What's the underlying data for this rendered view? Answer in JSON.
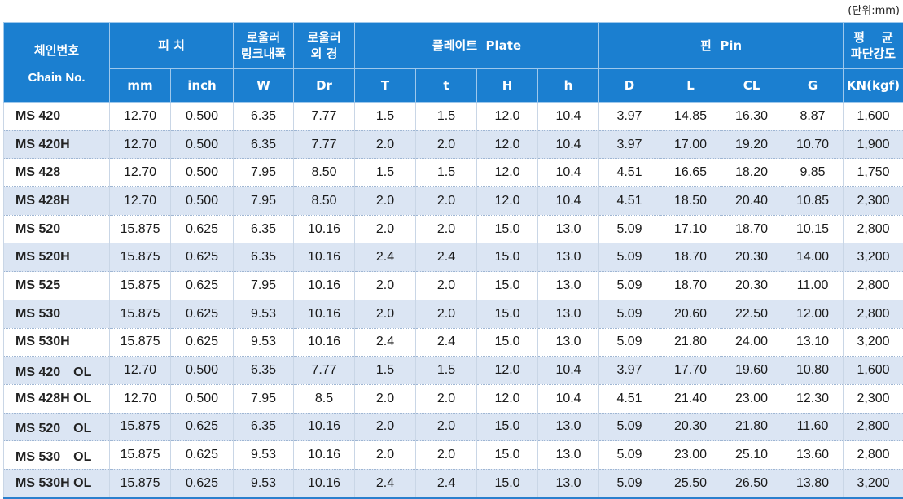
{
  "unit_note": "(단위:mm)",
  "header": {
    "chain_no_ko": "체인번호",
    "chain_no_en": "Chain No.",
    "pitch": "피 치",
    "pitch_mm": "mm",
    "pitch_inch": "inch",
    "roller_width_l1": "로울러",
    "roller_width_l2": "링크내폭",
    "roller_width_sym": "W",
    "roller_dia_l1": "로울러",
    "roller_dia_l2": "외 경",
    "roller_dia_sym": "Dr",
    "plate": "플레이트  Plate",
    "plate_cols": [
      "T",
      "t",
      "H",
      "h"
    ],
    "pin": "핀  Pin",
    "pin_cols": [
      "D",
      "L",
      "CL",
      "G"
    ],
    "strength_l1": "평    균",
    "strength_l2": "파단강도",
    "strength_unit": "KN(kgf)"
  },
  "rows": [
    [
      "MS 420",
      "12.70",
      "0.500",
      "6.35",
      "7.77",
      "1.5",
      "1.5",
      "12.0",
      "10.4",
      "3.97",
      "14.85",
      "16.30",
      "8.87",
      "1,600"
    ],
    [
      "MS 420H",
      "12.70",
      "0.500",
      "6.35",
      "7.77",
      "2.0",
      "2.0",
      "12.0",
      "10.4",
      "3.97",
      "17.00",
      "19.20",
      "10.70",
      "1,900"
    ],
    [
      "MS 428",
      "12.70",
      "0.500",
      "7.95",
      "8.50",
      "1.5",
      "1.5",
      "12.0",
      "10.4",
      "4.51",
      "16.65",
      "18.20",
      "9.85",
      "1,750"
    ],
    [
      "MS 428H",
      "12.70",
      "0.500",
      "7.95",
      "8.50",
      "2.0",
      "2.0",
      "12.0",
      "10.4",
      "4.51",
      "18.50",
      "20.40",
      "10.85",
      "2,300"
    ],
    [
      "MS 520",
      "15.875",
      "0.625",
      "6.35",
      "10.16",
      "2.0",
      "2.0",
      "15.0",
      "13.0",
      "5.09",
      "17.10",
      "18.70",
      "10.15",
      "2,800"
    ],
    [
      "MS 520H",
      "15.875",
      "0.625",
      "6.35",
      "10.16",
      "2.4",
      "2.4",
      "15.0",
      "13.0",
      "5.09",
      "18.70",
      "20.30",
      "14.00",
      "3,200"
    ],
    [
      "MS 525",
      "15.875",
      "0.625",
      "7.95",
      "10.16",
      "2.0",
      "2.0",
      "15.0",
      "13.0",
      "5.09",
      "18.70",
      "20.30",
      "11.00",
      "2,800"
    ],
    [
      "MS 530",
      "15.875",
      "0.625",
      "9.53",
      "10.16",
      "2.0",
      "2.0",
      "15.0",
      "13.0",
      "5.09",
      "20.60",
      "22.50",
      "12.00",
      "2,800"
    ],
    [
      "MS 530H",
      "15.875",
      "0.625",
      "9.53",
      "10.16",
      "2.4",
      "2.4",
      "15.0",
      "13.0",
      "5.09",
      "21.80",
      "24.00",
      "13.10",
      "3,200"
    ],
    [
      "MS 420　OL",
      "12.70",
      "0.500",
      "6.35",
      "7.77",
      "1.5",
      "1.5",
      "12.0",
      "10.4",
      "3.97",
      "17.70",
      "19.60",
      "10.80",
      "1,600"
    ],
    [
      "MS 428H OL",
      "12.70",
      "0.500",
      "7.95",
      "8.5",
      "2.0",
      "2.0",
      "12.0",
      "10.4",
      "4.51",
      "21.40",
      "23.00",
      "12.30",
      "2,300"
    ],
    [
      "MS 520　OL",
      "15.875",
      "0.625",
      "6.35",
      "10.16",
      "2.0",
      "2.0",
      "15.0",
      "13.0",
      "5.09",
      "20.30",
      "21.80",
      "11.60",
      "2,800"
    ],
    [
      "MS 530　OL",
      "15.875",
      "0.625",
      "9.53",
      "10.16",
      "2.0",
      "2.0",
      "15.0",
      "13.0",
      "5.09",
      "23.00",
      "25.10",
      "13.60",
      "2,800"
    ],
    [
      "MS 530H OL",
      "15.875",
      "0.625",
      "9.53",
      "10.16",
      "2.4",
      "2.4",
      "15.0",
      "13.0",
      "5.09",
      "25.50",
      "26.50",
      "13.80",
      "3,200"
    ]
  ],
  "colors": {
    "header_bg": "#1b7fd0",
    "header_text": "#ffffff",
    "alt_row_bg": "#dbe5f3",
    "bottom_rule": "#2a7fcd"
  }
}
